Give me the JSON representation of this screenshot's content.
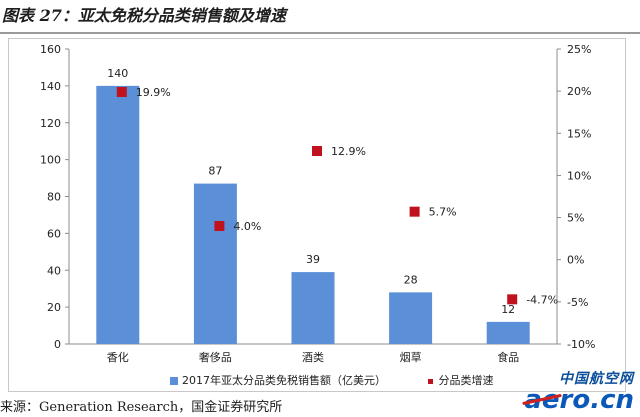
{
  "title": "图表 27：亚太免税分品类销售额及增速",
  "source": "来源：Generation Research，国金证券研究所",
  "watermark": {
    "line1": "中国航空网",
    "line2": "aero.cn"
  },
  "colors": {
    "bar": "#5b8fd8",
    "marker": "#c0121e",
    "grid": "#d9d9d9",
    "axis": "#8c8c8c"
  },
  "chart_data": {
    "type": "bar",
    "categories": [
      "香化",
      "奢侈品",
      "酒类",
      "烟草",
      "食品"
    ],
    "series": [
      {
        "name": "2017年亚太分品类免税销售额（亿美元）",
        "kind": "bar",
        "axis": "left",
        "values": [
          140,
          87,
          39,
          28,
          12
        ],
        "labels": [
          "140",
          "87",
          "39",
          "28",
          "12"
        ]
      },
      {
        "name": "分品类增速",
        "kind": "marker",
        "axis": "right",
        "values": [
          19.9,
          4.0,
          12.9,
          5.7,
          -4.7
        ],
        "labels": [
          "19.9%",
          "4.0%",
          "12.9%",
          "5.7%",
          "-4.7%"
        ]
      }
    ],
    "left_axis": {
      "range": [
        0,
        160
      ],
      "ticks": [
        "0",
        "20",
        "40",
        "60",
        "80",
        "100",
        "120",
        "140",
        "160"
      ]
    },
    "right_axis": {
      "range": [
        -10,
        25
      ],
      "ticks": [
        "-10%",
        "-5%",
        "0%",
        "5%",
        "10%",
        "15%",
        "20%",
        "25%"
      ]
    },
    "grid": false,
    "legend_position": "bottom"
  }
}
